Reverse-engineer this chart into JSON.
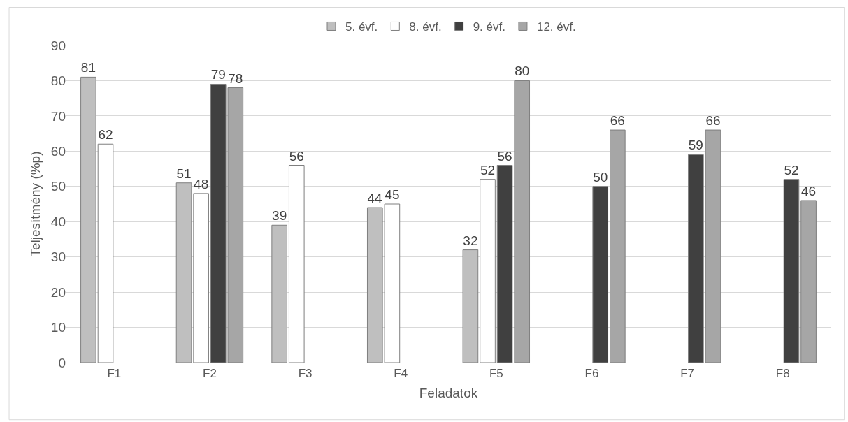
{
  "chart_data": {
    "type": "bar",
    "xlabel": "Feladatok",
    "ylabel": "Teljesítmény (%p)",
    "categories": [
      "F1",
      "F2",
      "F3",
      "F4",
      "F5",
      "F6",
      "F7",
      "F8"
    ],
    "series": [
      {
        "name": "5. évf.",
        "color": "#bfbfbf",
        "values": [
          81,
          51,
          39,
          44,
          32,
          null,
          null,
          null
        ]
      },
      {
        "name": "8. évf.",
        "color": "#ffffff",
        "values": [
          62,
          48,
          56,
          45,
          52,
          null,
          null,
          null
        ]
      },
      {
        "name": "9. évf.",
        "color": "#404040",
        "values": [
          null,
          79,
          null,
          null,
          56,
          50,
          59,
          52
        ]
      },
      {
        "name": "12. évf.",
        "color": "#a6a6a6",
        "values": [
          null,
          78,
          null,
          null,
          80,
          66,
          66,
          46
        ]
      }
    ],
    "ylim": [
      0,
      90
    ],
    "yticks": [
      0,
      10,
      20,
      30,
      40,
      50,
      60,
      70,
      80,
      90
    ],
    "grid": "y",
    "legend": "top",
    "data_labels": true
  }
}
